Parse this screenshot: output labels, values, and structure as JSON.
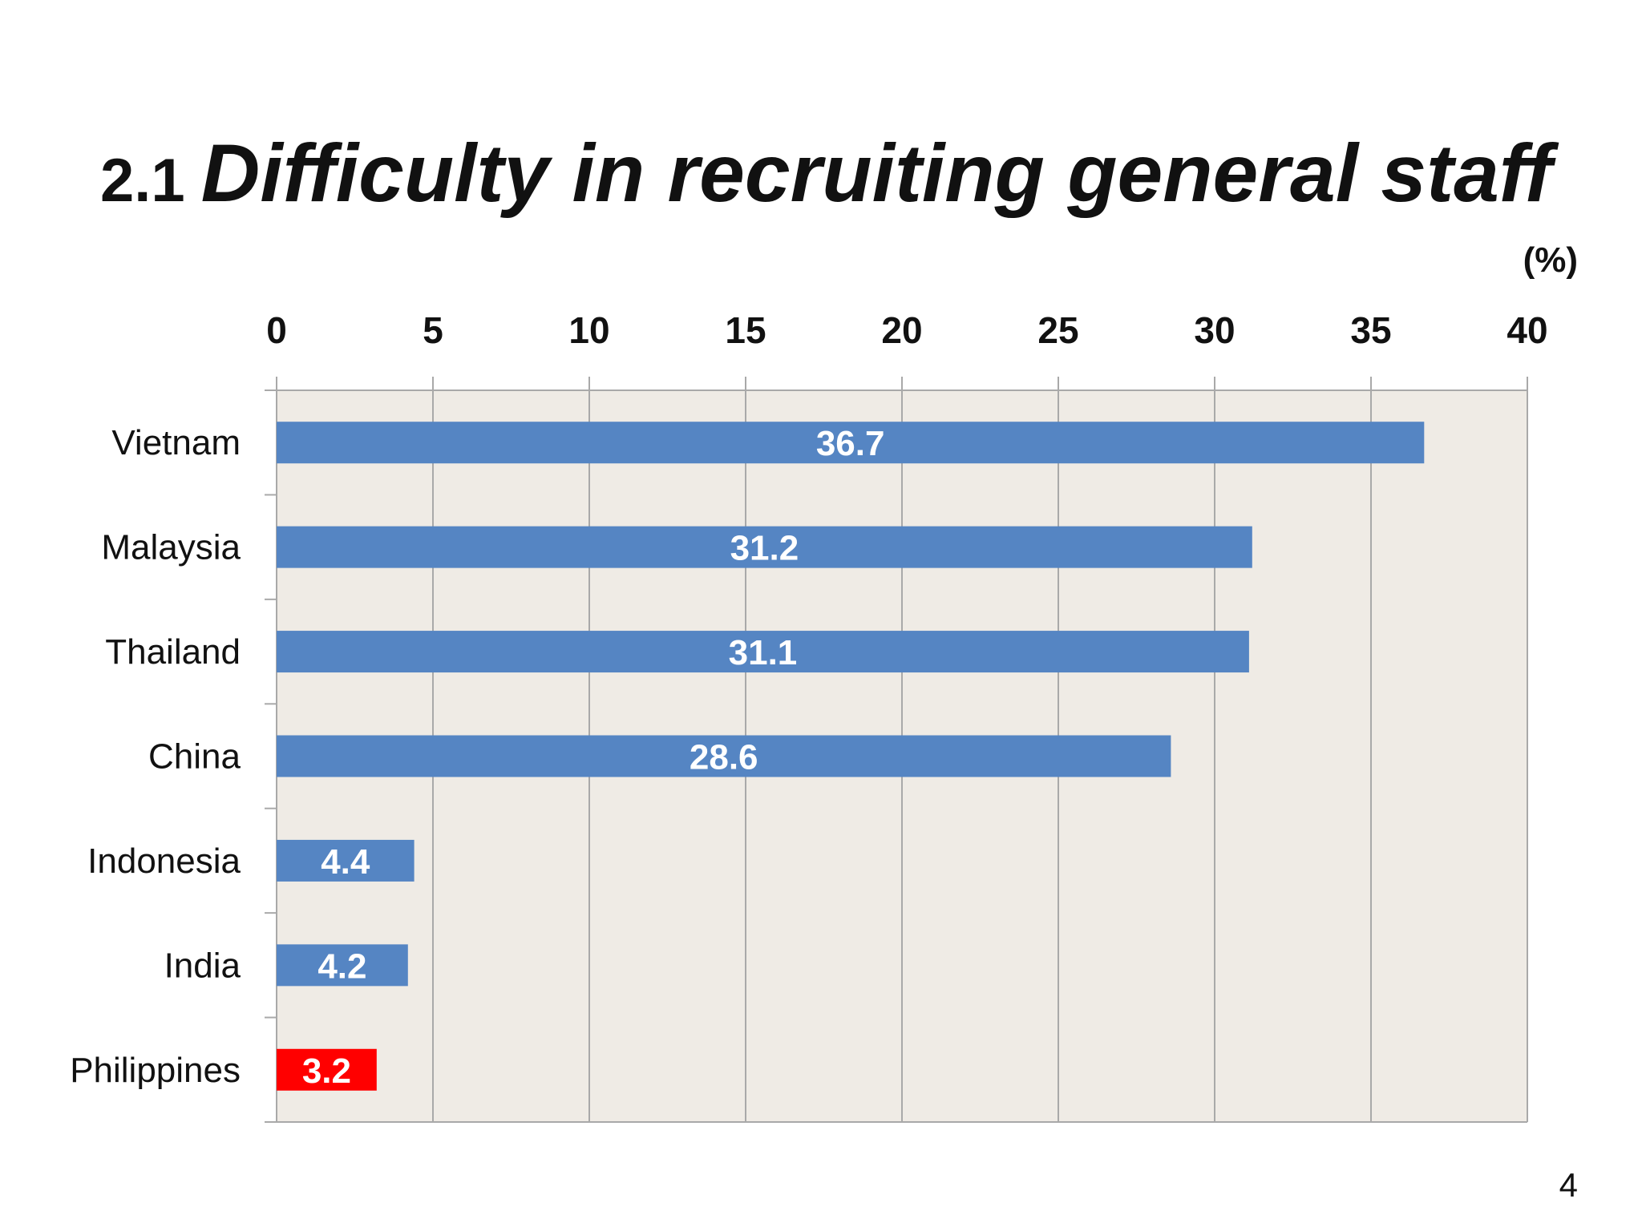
{
  "slide": {
    "title_number": "2.1",
    "title_text": "Difficulty in recruiting general staff",
    "unit": "(%)",
    "page_number": "4"
  },
  "colors": {
    "bar": "#5585c3",
    "highlight": "#ff0000",
    "plot_bg": "#efebe5",
    "grid": "#a9a9a9"
  },
  "chart_data": {
    "type": "bar",
    "orientation": "horizontal",
    "title": "Difficulty in recruiting general staff",
    "xlabel": "(%)",
    "ylabel": "",
    "xlim": [
      0,
      40
    ],
    "xticks": [
      0,
      5,
      10,
      15,
      20,
      25,
      30,
      35,
      40
    ],
    "categories": [
      "Vietnam",
      "Malaysia",
      "Thailand",
      "China",
      "Indonesia",
      "India",
      "Philippines"
    ],
    "values": [
      36.7,
      31.2,
      31.1,
      28.6,
      4.4,
      4.2,
      3.2
    ],
    "value_labels": [
      "36.7",
      "31.2",
      "31.1",
      "28.6",
      "4.4",
      "4.2",
      "3.2"
    ],
    "highlighted": [
      "Philippines"
    ],
    "grid": true,
    "axis_position": "top"
  }
}
